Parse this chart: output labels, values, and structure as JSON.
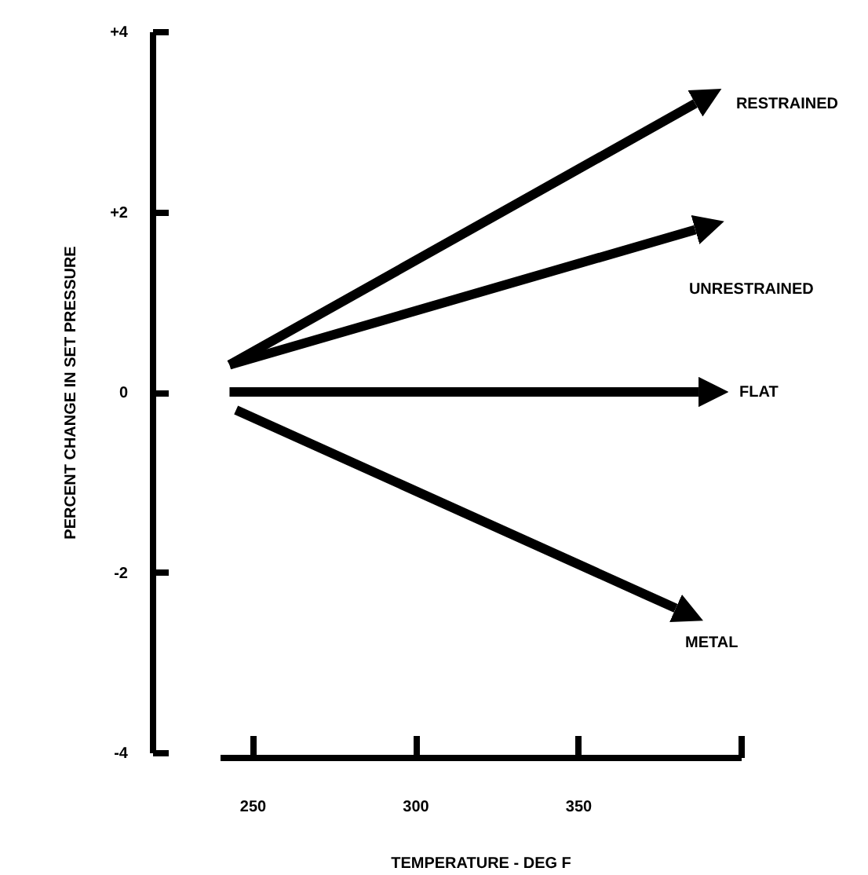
{
  "chart_data": {
    "type": "line",
    "xlabel": "TEMPERATURE - DEG F",
    "ylabel": "PERCENT CHANGE IN SET PRESSURE",
    "xlim": [
      240,
      400
    ],
    "xticks": [
      250,
      300,
      350,
      {
        "value": 400,
        "label": null
      }
    ],
    "ylim": [
      -4,
      4
    ],
    "yticks": [
      {
        "value": 4,
        "label": "+4"
      },
      {
        "value": 2,
        "label": "+2"
      },
      0,
      -2,
      -4
    ],
    "grid": false,
    "legend": "right",
    "line_style": "solid",
    "series": [
      {
        "name": "RESTRAINED",
        "color": "#000000",
        "x": [
          243,
          386
        ],
        "values": [
          0.3,
          3.2
        ]
      },
      {
        "name": "UNRESTRAINED",
        "color": "#000000",
        "x": [
          243,
          386
        ],
        "values": [
          0.3,
          1.8
        ]
      },
      {
        "name": "FLAT",
        "color": "#000000",
        "x": [
          243,
          387
        ],
        "values": [
          0,
          0
        ]
      },
      {
        "name": "METAL",
        "color": "#000000",
        "x": [
          245,
          380
        ],
        "values": [
          -0.2,
          -2.4
        ]
      }
    ]
  }
}
